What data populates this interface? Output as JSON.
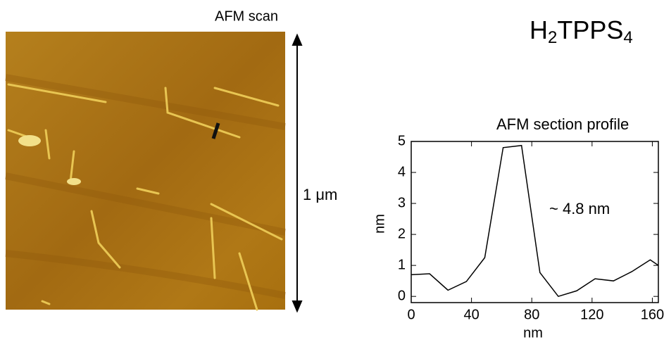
{
  "scan_label": "AFM scan",
  "scale_label": "1 μm",
  "compound": [
    "H",
    "2",
    "TPPS",
    "4"
  ],
  "chart_data": {
    "type": "line",
    "title": "AFM section profile",
    "annotation": "~ 4.8 nm",
    "x_label": "nm",
    "y_label": "nm",
    "x": [
      0,
      12.2,
      24.4,
      36.6,
      48.8,
      61,
      73.2,
      85.4,
      97.6,
      109.8,
      122,
      134.2,
      146.4,
      158.6,
      164
    ],
    "series": [
      {
        "color": "#000000",
        "values": [
          0.7,
          0.73,
          0.2,
          0.48,
          1.25,
          4.8,
          4.87,
          0.77,
          0.0,
          0.18,
          0.57,
          0.5,
          0.8,
          1.18,
          1.0
        ]
      }
    ],
    "xlim": [
      0,
      164
    ],
    "ylim": [
      -0.2,
      5
    ],
    "xticks": [
      0,
      40,
      80,
      120,
      160
    ],
    "yticks": [
      0,
      1,
      2,
      3,
      4,
      5
    ]
  }
}
